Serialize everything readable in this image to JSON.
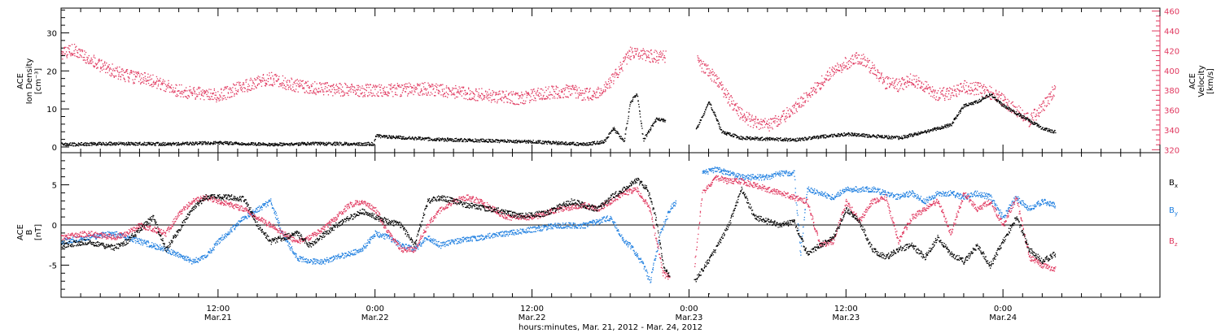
{
  "colors": {
    "black": "#000000",
    "pink": "#e0385f",
    "blue": "#1f7fe0"
  },
  "x_axis": {
    "label": "hours:minutes, Mar. 21, 2012 - Mar. 24, 2012",
    "ticks": [
      {
        "t": 12,
        "time": "12:00",
        "date": "Mar.21"
      },
      {
        "t": 24,
        "time": "0:00",
        "date": "Mar.22"
      },
      {
        "t": 36,
        "time": "12:00",
        "date": "Mar.22"
      },
      {
        "t": 48,
        "time": "0:00",
        "date": "Mar.23"
      },
      {
        "t": 60,
        "time": "12:00",
        "date": "Mar.23"
      },
      {
        "t": 72,
        "time": "0:00",
        "date": "Mar.24"
      }
    ],
    "range_hours": [
      0,
      84
    ]
  },
  "chart_data": [
    {
      "type": "scatter",
      "panel": "top",
      "left_axis": {
        "label_lines": [
          "ACE",
          "Ion Density",
          "[cm⁻³]"
        ],
        "ylim": [
          -1.5,
          36.5
        ],
        "ticks": [
          "0",
          "10",
          "20",
          "30"
        ],
        "tick_values": [
          0,
          10,
          20,
          30
        ]
      },
      "right_axis": {
        "label_lines": [
          "ACE",
          "Velocity",
          "[km/s]"
        ],
        "ylim": [
          317,
          463
        ],
        "ticks": [
          "320",
          "340",
          "360",
          "380",
          "400",
          "420",
          "440",
          "460"
        ],
        "tick_values": [
          320,
          340,
          360,
          380,
          400,
          420,
          440,
          460
        ]
      },
      "series": [
        {
          "color": "black",
          "axis": "left",
          "x_hours": [
            0,
            4,
            8,
            12,
            16,
            20,
            23.9,
            24,
            28,
            32,
            36,
            40,
            41.5,
            42.2,
            43.0,
            43.5,
            44.0,
            44.5,
            45.5,
            46.2,
            46.8,
            48.5,
            49.5,
            50.5,
            52,
            56,
            60,
            64,
            66,
            68,
            69,
            70,
            71,
            72,
            73,
            74,
            75,
            76
          ],
          "values": [
            0.8,
            1.0,
            0.9,
            1.2,
            0.8,
            1.0,
            0.9,
            3.0,
            2.2,
            1.8,
            1.5,
            0.8,
            1.5,
            5.0,
            1.5,
            12.0,
            14.0,
            2.0,
            7.5,
            7.0,
            null,
            4.5,
            12.0,
            4.0,
            2.5,
            2.0,
            3.5,
            2.5,
            4.0,
            6.0,
            11.0,
            12.0,
            14.0,
            11.0,
            9.0,
            7.0,
            5.0,
            4.0
          ]
        },
        {
          "color": "pink",
          "axis": "right",
          "x_hours": [
            0,
            1,
            3,
            5,
            7,
            9,
            10,
            12,
            14,
            16,
            18,
            20,
            24,
            28,
            32,
            35,
            37,
            39,
            40,
            41,
            41.5,
            42.5,
            43.5,
            45,
            46.2,
            46.8,
            48.6,
            50,
            51,
            52,
            53,
            54,
            55,
            56,
            57,
            58,
            59,
            60,
            61,
            62,
            63,
            64,
            65,
            66,
            67,
            68,
            69,
            70,
            71,
            72,
            73,
            74,
            75,
            76
          ],
          "values": [
            418,
            422,
            405,
            395,
            390,
            380,
            378,
            375,
            385,
            392,
            385,
            382,
            380,
            382,
            376,
            372,
            378,
            380,
            376,
            378,
            382,
            398,
            418,
            415,
            414,
            null,
            410,
            392,
            372,
            355,
            348,
            345,
            352,
            362,
            374,
            388,
            400,
            408,
            414,
            402,
            388,
            385,
            392,
            385,
            376,
            378,
            384,
            382,
            378,
            370,
            360,
            350,
            364,
            382
          ]
        }
      ]
    },
    {
      "type": "scatter",
      "panel": "bottom",
      "left_axis": {
        "label_lines": [
          "ACE",
          "B",
          "[nT]"
        ],
        "ylim": [
          -9,
          9
        ],
        "ticks": [
          "-5",
          "0",
          "5"
        ],
        "tick_values": [
          -5,
          0,
          5
        ]
      },
      "legend": [
        {
          "label": "B",
          "sub": "x",
          "color": "black"
        },
        {
          "label": "B",
          "sub": "y",
          "color": "blue"
        },
        {
          "label": "B",
          "sub": "z",
          "color": "pink"
        }
      ],
      "legend_position": "right",
      "series": [
        {
          "color": "black",
          "x_hours": [
            0,
            2,
            4,
            5,
            7,
            8,
            9,
            10,
            11,
            13,
            14,
            15,
            16,
            17,
            18,
            19,
            21,
            23,
            24,
            25,
            26,
            27,
            28,
            29,
            31,
            33,
            35,
            37,
            39,
            41,
            42,
            43,
            44,
            44.8,
            45.5,
            46,
            46.5,
            47.5,
            48.4,
            49,
            50,
            51,
            52,
            53,
            54,
            55,
            56,
            57,
            58,
            59,
            60,
            61,
            62,
            63,
            64,
            65,
            66,
            67,
            68,
            69,
            70,
            71,
            72,
            73,
            74,
            75,
            76
          ],
          "values": [
            -2.5,
            -2,
            -2.8,
            -2,
            1,
            -3,
            -0.5,
            2,
            3.5,
            3.5,
            3.3,
            0,
            -2,
            -1.5,
            -1,
            -2.5,
            0,
            1.8,
            1,
            0.5,
            0,
            -2.5,
            3,
            3.5,
            2.5,
            2,
            1.2,
            1.5,
            3,
            2,
            3.5,
            4.5,
            5.7,
            4.5,
            0.5,
            -5,
            -6.5,
            null,
            -7,
            -5.5,
            -3,
            0,
            4.5,
            1,
            0.5,
            0,
            0.5,
            -3.5,
            -2.5,
            -1.5,
            2,
            0.5,
            -3,
            -4,
            -3,
            -2.5,
            -4,
            -1.5,
            -3.5,
            -4.5,
            -2.5,
            -5,
            -2,
            1,
            -3,
            -4.5,
            -3.5
          ]
        },
        {
          "color": "blue",
          "x_hours": [
            0,
            2,
            4,
            6,
            8,
            10,
            11,
            12,
            13,
            14,
            15,
            16,
            17,
            18,
            19,
            20,
            21,
            23,
            24,
            25,
            26,
            27,
            28,
            29,
            30,
            32,
            34,
            36,
            38,
            40,
            41,
            42,
            43,
            43.5,
            44.5,
            45,
            45.8,
            46.5,
            47,
            48.4,
            49,
            50,
            52,
            54,
            55,
            56,
            56.5,
            57,
            58,
            59,
            60,
            61,
            62,
            63,
            64,
            65,
            66,
            67,
            68,
            69,
            70,
            71,
            72,
            73,
            74,
            75,
            76
          ],
          "values": [
            -2,
            -1.5,
            -1,
            -2,
            -3,
            -4.5,
            -4,
            -2,
            -0.5,
            1,
            2,
            3,
            -1.5,
            -4,
            -4.5,
            -4.5,
            -4,
            -3,
            -1,
            -1.5,
            -2.5,
            -3,
            -1.5,
            -2.5,
            -2,
            -1.5,
            -1,
            -0.5,
            0,
            0,
            0.5,
            1,
            -2,
            -2.5,
            -5,
            -7,
            -1,
            2,
            3,
            null,
            6.5,
            7,
            6,
            6,
            6.5,
            6.5,
            -3.5,
            4.5,
            4,
            3.5,
            4.5,
            4.5,
            4.5,
            4,
            3.5,
            4,
            3,
            4,
            4,
            3.5,
            4,
            3.5,
            1,
            3.5,
            2,
            3,
            2.5
          ]
        },
        {
          "color": "pink",
          "x_hours": [
            0,
            2,
            4,
            5,
            6,
            7,
            8,
            9,
            10,
            11,
            12,
            14,
            16,
            18,
            19,
            20,
            21,
            22,
            23,
            24,
            25,
            26,
            27,
            28,
            29,
            30,
            31,
            32,
            33,
            34,
            36,
            38,
            40,
            41,
            42,
            43,
            44,
            45,
            45.5,
            46,
            46.5,
            47,
            48.4,
            49,
            50,
            51,
            52,
            53,
            54,
            55,
            56,
            57,
            58,
            59,
            60,
            61,
            62,
            63,
            64,
            65,
            66,
            67,
            68,
            69,
            70,
            71,
            72,
            73,
            74,
            75,
            76
          ],
          "values": [
            -1.5,
            -1,
            -1.5,
            -1,
            0,
            -0.5,
            -1,
            1.5,
            3,
            3.5,
            3,
            2,
            0,
            -2,
            -1.5,
            -0.5,
            1,
            2.5,
            3,
            2,
            -1,
            -3,
            -3,
            0,
            2,
            3,
            3.5,
            3,
            2,
            1,
            1,
            2,
            2.5,
            2,
            3,
            4,
            4.5,
            2,
            -2,
            -6,
            -6.5,
            null,
            -5,
            4,
            6,
            5.5,
            5.5,
            5,
            4.5,
            4,
            3.5,
            3,
            -2.5,
            -2,
            3,
            0.5,
            3,
            3.5,
            -2,
            1,
            2,
            3,
            -1,
            4,
            2,
            3,
            0,
            3.5,
            -4,
            -5,
            -5.5
          ]
        }
      ]
    }
  ],
  "stray_points": [
    {
      "x_hours": 49.5,
      "values": [
        -8.5
      ]
    }
  ]
}
